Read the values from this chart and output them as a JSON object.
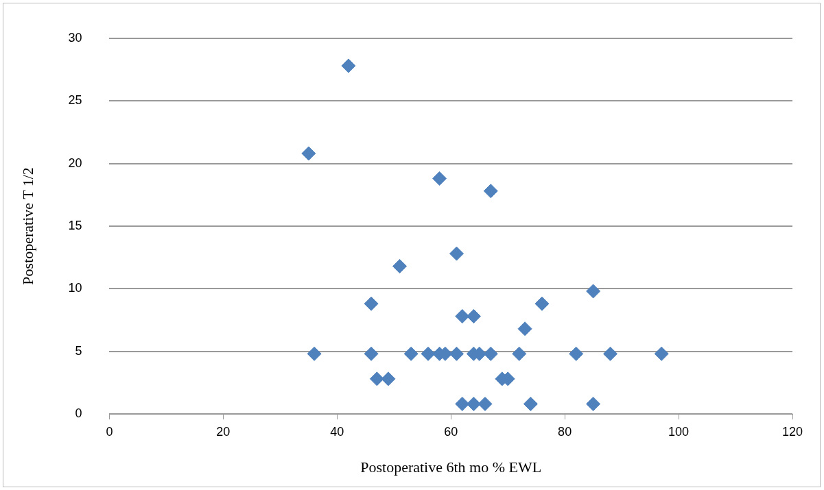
{
  "chart_data": {
    "type": "scatter",
    "xlabel": "Postoperative 6th mo % EWL",
    "ylabel": "Postoperative T 1/2",
    "x": [
      42,
      35,
      58,
      67,
      61,
      51,
      46,
      76,
      62,
      64,
      73,
      36,
      46,
      53,
      56,
      58,
      59,
      61,
      64,
      65,
      67,
      72,
      82,
      88,
      97,
      47,
      49,
      69,
      70,
      62,
      64,
      66,
      74,
      85,
      85
    ],
    "values": [
      27.8,
      20.8,
      18.8,
      17.8,
      12.8,
      11.8,
      8.8,
      8.8,
      7.8,
      7.8,
      6.8,
      4.8,
      4.8,
      4.8,
      4.8,
      4.8,
      4.8,
      4.8,
      4.8,
      4.8,
      4.8,
      4.8,
      4.8,
      4.8,
      4.8,
      2.8,
      2.8,
      2.8,
      2.8,
      0.8,
      0.8,
      0.8,
      0.8,
      0.8,
      9.8
    ],
    "color": "#4f81bd",
    "marker": "diamond",
    "grid": "y",
    "legend": false,
    "xlim": [
      0,
      120
    ],
    "xticks": [
      0,
      20,
      40,
      60,
      80,
      100,
      120
    ],
    "ylim": [
      0,
      30
    ],
    "yticks": [
      0,
      5,
      10,
      15,
      20,
      25,
      30
    ]
  }
}
